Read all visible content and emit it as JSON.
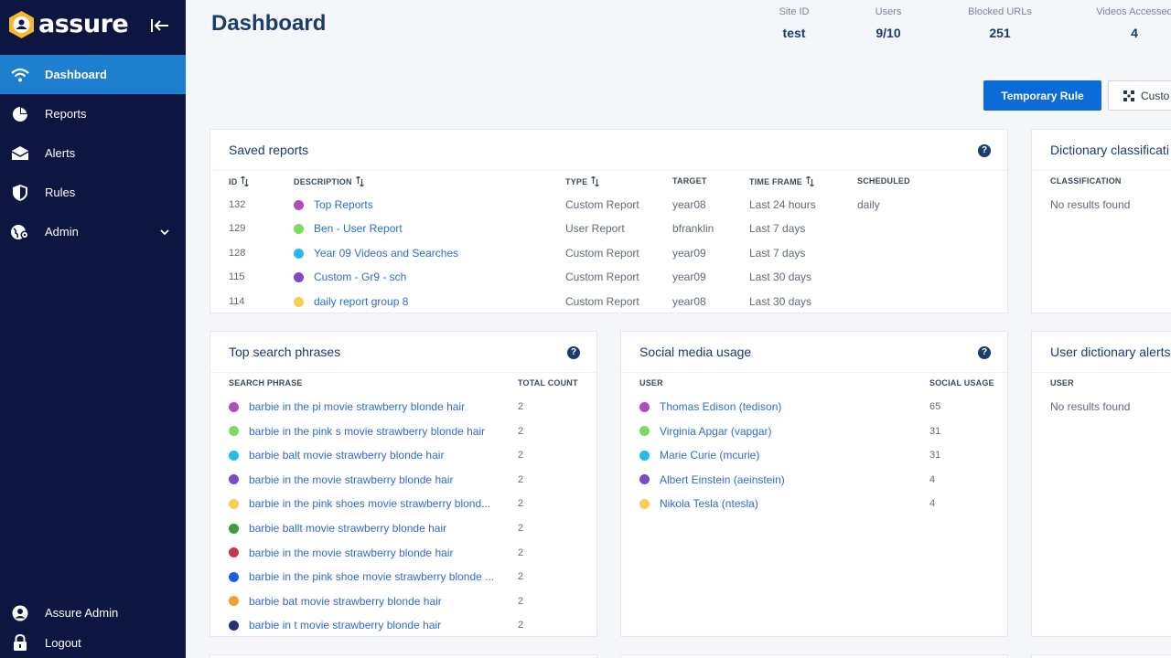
{
  "brand": {
    "name": "assure"
  },
  "sidebar": {
    "items": [
      {
        "label": "Dashboard",
        "icon": "wifi-icon",
        "active": true
      },
      {
        "label": "Reports",
        "icon": "pie-chart-icon"
      },
      {
        "label": "Alerts",
        "icon": "envelope-icon"
      },
      {
        "label": "Rules",
        "icon": "shield-icon"
      },
      {
        "label": "Admin",
        "icon": "globe-gear-icon"
      }
    ],
    "user": "Assure Admin",
    "logout": "Logout"
  },
  "header": {
    "title": "Dashboard",
    "stats": [
      {
        "label": "Site ID",
        "value": "test"
      },
      {
        "label": "Users",
        "value": "9/10"
      },
      {
        "label": "Blocked URLs",
        "value": "251"
      },
      {
        "label": "Videos Accessed",
        "value": "4"
      }
    ],
    "primary_button": "Temporary Rule",
    "secondary_button": "Custo"
  },
  "saved_reports": {
    "title": "Saved reports",
    "columns": [
      "ID",
      "DESCRIPTION",
      "TYPE",
      "TARGET",
      "TIME FRAME",
      "SCHEDULED"
    ],
    "rows": [
      {
        "id": "132",
        "desc": "Top Reports",
        "color": "#b04cc0",
        "type": "Custom Report",
        "target": "year08",
        "timeframe": "Last 24 hours",
        "scheduled": "daily"
      },
      {
        "id": "129",
        "desc": "Ben - User Report",
        "color": "#7bdc5f",
        "type": "User Report",
        "target": "bfranklin",
        "timeframe": "Last 7 days",
        "scheduled": ""
      },
      {
        "id": "128",
        "desc": "Year 09 Videos and Searches",
        "color": "#2bb8ef",
        "type": "Custom Report",
        "target": "year09",
        "timeframe": "Last 7 days",
        "scheduled": ""
      },
      {
        "id": "115",
        "desc": "Custom - Gr9 - sch",
        "color": "#7b49c9",
        "type": "Custom Report",
        "target": "year09",
        "timeframe": "Last 30 days",
        "scheduled": ""
      },
      {
        "id": "114",
        "desc": "daily report group 8",
        "color": "#f7cd55",
        "type": "Custom Report",
        "target": "year08",
        "timeframe": "Last 30 days",
        "scheduled": ""
      }
    ]
  },
  "dictionary_classification": {
    "title": "Dictionary classificati",
    "column": "CLASSIFICATION",
    "empty": "No results found"
  },
  "top_search": {
    "title": "Top search phrases",
    "columns": [
      "SEARCH PHRASE",
      "TOTAL COUNT"
    ],
    "rows": [
      {
        "phrase": "barbie in the pi movie strawberry blonde hair",
        "count": "2",
        "color": "#b04cc0"
      },
      {
        "phrase": "barbie in the pink s movie strawberry blonde hair",
        "count": "2",
        "color": "#7bdc5f"
      },
      {
        "phrase": "barbie balt movie strawberry blonde hair",
        "count": "2",
        "color": "#2bb8ef"
      },
      {
        "phrase": "barbie in the movie strawberry blonde hair",
        "count": "2",
        "color": "#7b49c9"
      },
      {
        "phrase": "barbie in the pink shoes movie strawberry blond...",
        "count": "2",
        "color": "#f7cd55"
      },
      {
        "phrase": "barbie ballt movie strawberry blonde hair",
        "count": "2",
        "color": "#3a9c3a"
      },
      {
        "phrase": "barbie in the movie strawberry blonde hair",
        "count": "2",
        "color": "#c9374f"
      },
      {
        "phrase": "barbie in the pink shoe movie strawberry blonde ...",
        "count": "2",
        "color": "#1a5ee0"
      },
      {
        "phrase": "barbie bat movie strawberry blonde hair",
        "count": "2",
        "color": "#f0a030"
      },
      {
        "phrase": "barbie in t movie strawberry blonde hair",
        "count": "2",
        "color": "#2e2f7a"
      }
    ]
  },
  "social_media": {
    "title": "Social media usage",
    "columns": [
      "USER",
      "SOCIAL USAGE"
    ],
    "rows": [
      {
        "user": "Thomas Edison (tedison)",
        "usage": "65",
        "color": "#b04cc0"
      },
      {
        "user": "Virginia Apgar (vapgar)",
        "usage": "31",
        "color": "#7bdc5f"
      },
      {
        "user": "Marie Curie (mcurie)",
        "usage": "31",
        "color": "#2bb8ef"
      },
      {
        "user": "Albert Einstein (aeinstein)",
        "usage": "4",
        "color": "#7b49c9"
      },
      {
        "user": "Nikola Tesla (ntesla)",
        "usage": "4",
        "color": "#f7cd55"
      }
    ]
  },
  "user_dictionary": {
    "title": "User dictionary alerts",
    "column": "USER",
    "empty": "No results found"
  }
}
